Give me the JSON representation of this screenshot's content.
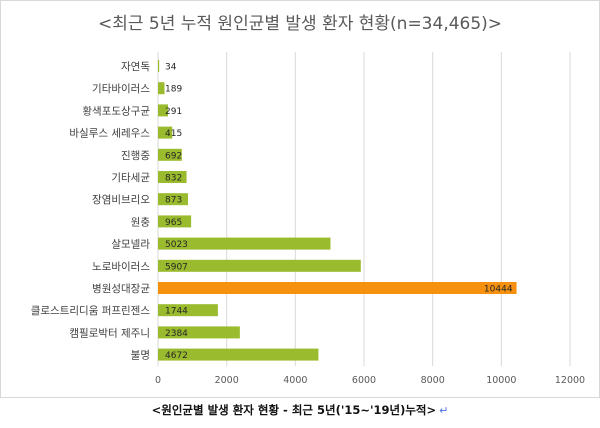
{
  "chart_data": {
    "type": "bar",
    "orientation": "horizontal",
    "title": "<최근 5년 누적 원인균별 발생 환자 현황(n=34,465)>",
    "categories": [
      "자연독",
      "기타바이러스",
      "황색포도상구균",
      "바실루스 세레우스",
      "진행중",
      "기타세균",
      "장염비브리오",
      "원충",
      "살모넬라",
      "노로바이러스",
      "병원성대장균",
      "클로스트리디움 퍼프린젠스",
      "캠필로박터 제주니",
      "불명"
    ],
    "values": [
      34,
      189,
      291,
      415,
      692,
      832,
      873,
      965,
      5023,
      5907,
      10444,
      1744,
      2384,
      4672
    ],
    "highlight_category": "병원성대장균",
    "colors": {
      "bar": "#9bbb2e",
      "highlight": "#f5910f",
      "grid": "#d9d9d9"
    },
    "xlim": [
      0,
      12000
    ],
    "xticks": [
      0,
      2000,
      4000,
      6000,
      8000,
      10000,
      12000
    ],
    "xlabel": "",
    "ylabel": "",
    "grid": true,
    "legend": "none"
  },
  "caption": {
    "text": "<원인균별 발생 환자 현황 - 최근 5년('15~'19년)누적>",
    "return_mark": "↵"
  }
}
